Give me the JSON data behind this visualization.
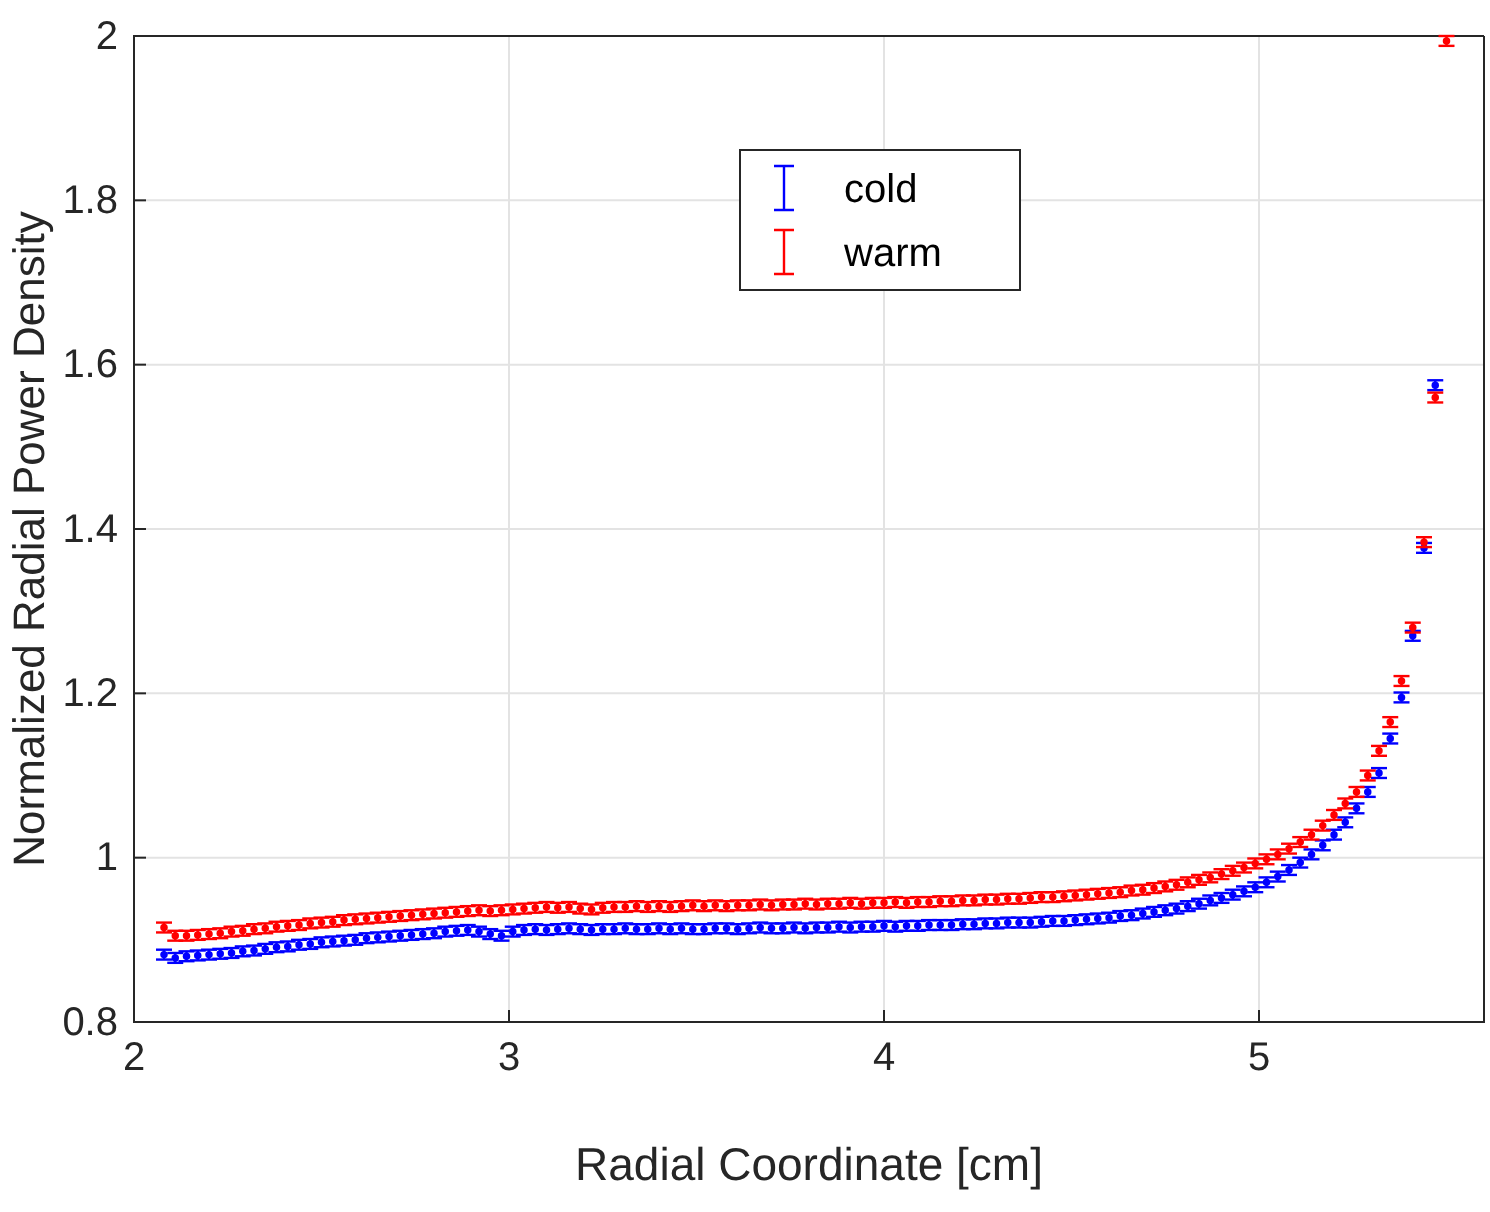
{
  "chart_data": {
    "type": "scatter",
    "xlabel": "Radial Coordinate [cm]",
    "ylabel": "Normalized Radial Power Density",
    "xlim": [
      2,
      5.6
    ],
    "xticks": [
      2,
      3,
      4,
      5
    ],
    "ylim": [
      0.8,
      2
    ],
    "yticks": [
      0.8,
      1,
      1.2,
      1.4,
      1.6,
      1.8,
      2
    ],
    "grid": true,
    "legend": "top",
    "marker": "circle",
    "series": [
      {
        "name": "cold",
        "color": "#0000ff",
        "x": [
          2.08,
          2.11,
          2.14,
          2.17,
          2.2,
          2.23,
          2.26,
          2.29,
          2.32,
          2.35,
          2.38,
          2.41,
          2.44,
          2.47,
          2.5,
          2.53,
          2.56,
          2.59,
          2.62,
          2.65,
          2.68,
          2.71,
          2.74,
          2.77,
          2.8,
          2.83,
          2.86,
          2.89,
          2.92,
          2.95,
          2.98,
          3.01,
          3.04,
          3.07,
          3.1,
          3.13,
          3.16,
          3.19,
          3.22,
          3.25,
          3.28,
          3.31,
          3.34,
          3.37,
          3.4,
          3.43,
          3.46,
          3.49,
          3.52,
          3.55,
          3.58,
          3.61,
          3.64,
          3.67,
          3.7,
          3.73,
          3.76,
          3.79,
          3.82,
          3.85,
          3.88,
          3.91,
          3.94,
          3.97,
          4,
          4.03,
          4.06,
          4.09,
          4.12,
          4.15,
          4.18,
          4.21,
          4.24,
          4.27,
          4.3,
          4.33,
          4.36,
          4.39,
          4.42,
          4.45,
          4.48,
          4.51,
          4.54,
          4.57,
          4.6,
          4.63,
          4.66,
          4.69,
          4.72,
          4.75,
          4.78,
          4.81,
          4.84,
          4.87,
          4.9,
          4.93,
          4.96,
          4.99,
          5.02,
          5.05,
          5.08,
          5.11,
          5.14,
          5.17,
          5.2,
          5.23,
          5.26,
          5.29,
          5.32,
          5.35,
          5.38,
          5.41,
          5.44,
          5.47
        ],
        "values": [
          0.882,
          0.878,
          0.88,
          0.881,
          0.882,
          0.883,
          0.884,
          0.886,
          0.887,
          0.889,
          0.891,
          0.892,
          0.894,
          0.895,
          0.897,
          0.898,
          0.899,
          0.9,
          0.902,
          0.903,
          0.904,
          0.905,
          0.906,
          0.907,
          0.908,
          0.91,
          0.911,
          0.912,
          0.91,
          0.907,
          0.905,
          0.91,
          0.912,
          0.913,
          0.912,
          0.913,
          0.914,
          0.913,
          0.912,
          0.913,
          0.913,
          0.914,
          0.913,
          0.913,
          0.914,
          0.913,
          0.914,
          0.913,
          0.913,
          0.914,
          0.914,
          0.913,
          0.914,
          0.915,
          0.914,
          0.914,
          0.915,
          0.914,
          0.915,
          0.915,
          0.916,
          0.915,
          0.916,
          0.916,
          0.917,
          0.916,
          0.917,
          0.917,
          0.918,
          0.918,
          0.918,
          0.919,
          0.919,
          0.92,
          0.92,
          0.921,
          0.921,
          0.921,
          0.922,
          0.923,
          0.923,
          0.924,
          0.925,
          0.926,
          0.927,
          0.929,
          0.93,
          0.932,
          0.934,
          0.936,
          0.938,
          0.941,
          0.944,
          0.948,
          0.951,
          0.955,
          0.959,
          0.964,
          0.97,
          0.977,
          0.985,
          0.994,
          1.004,
          1.015,
          1.028,
          1.043,
          1.06,
          1.08,
          1.103,
          1.145,
          1.195,
          1.27,
          1.377,
          1.575
        ],
        "errors": [
          0.006,
          0.006,
          0.006,
          0.006,
          0.006,
          0.006,
          0.006,
          0.006,
          0.006,
          0.006,
          0.006,
          0.006,
          0.006,
          0.006,
          0.006,
          0.006,
          0.006,
          0.006,
          0.006,
          0.006,
          0.006,
          0.006,
          0.006,
          0.006,
          0.006,
          0.006,
          0.006,
          0.006,
          0.006,
          0.006,
          0.006,
          0.006,
          0.006,
          0.006,
          0.006,
          0.006,
          0.006,
          0.006,
          0.006,
          0.006,
          0.006,
          0.006,
          0.006,
          0.006,
          0.006,
          0.006,
          0.006,
          0.006,
          0.006,
          0.006,
          0.006,
          0.006,
          0.006,
          0.006,
          0.006,
          0.006,
          0.006,
          0.006,
          0.006,
          0.006,
          0.006,
          0.006,
          0.006,
          0.006,
          0.006,
          0.006,
          0.006,
          0.006,
          0.006,
          0.006,
          0.006,
          0.006,
          0.006,
          0.006,
          0.006,
          0.006,
          0.006,
          0.006,
          0.006,
          0.006,
          0.006,
          0.006,
          0.006,
          0.006,
          0.006,
          0.006,
          0.006,
          0.006,
          0.006,
          0.006,
          0.006,
          0.006,
          0.006,
          0.006,
          0.006,
          0.006,
          0.006,
          0.006,
          0.006,
          0.006,
          0.006,
          0.006,
          0.006,
          0.006,
          0.006,
          0.006,
          0.006,
          0.006,
          0.006,
          0.006,
          0.006,
          0.006,
          0.006,
          0.006
        ]
      },
      {
        "name": "warm",
        "color": "#ff0000",
        "x": [
          2.08,
          2.11,
          2.14,
          2.17,
          2.2,
          2.23,
          2.26,
          2.29,
          2.32,
          2.35,
          2.38,
          2.41,
          2.44,
          2.47,
          2.5,
          2.53,
          2.56,
          2.59,
          2.62,
          2.65,
          2.68,
          2.71,
          2.74,
          2.77,
          2.8,
          2.83,
          2.86,
          2.89,
          2.92,
          2.95,
          2.98,
          3.01,
          3.04,
          3.07,
          3.1,
          3.13,
          3.16,
          3.19,
          3.22,
          3.25,
          3.28,
          3.31,
          3.34,
          3.37,
          3.4,
          3.43,
          3.46,
          3.49,
          3.52,
          3.55,
          3.58,
          3.61,
          3.64,
          3.67,
          3.7,
          3.73,
          3.76,
          3.79,
          3.82,
          3.85,
          3.88,
          3.91,
          3.94,
          3.97,
          4,
          4.03,
          4.06,
          4.09,
          4.12,
          4.15,
          4.18,
          4.21,
          4.24,
          4.27,
          4.3,
          4.33,
          4.36,
          4.39,
          4.42,
          4.45,
          4.48,
          4.51,
          4.54,
          4.57,
          4.6,
          4.63,
          4.66,
          4.69,
          4.72,
          4.75,
          4.78,
          4.81,
          4.84,
          4.87,
          4.9,
          4.93,
          4.96,
          4.99,
          5.02,
          5.05,
          5.08,
          5.11,
          5.14,
          5.17,
          5.2,
          5.23,
          5.26,
          5.29,
          5.32,
          5.35,
          5.38,
          5.41,
          5.44,
          5.47,
          5.5
        ],
        "values": [
          0.915,
          0.905,
          0.905,
          0.906,
          0.907,
          0.908,
          0.91,
          0.911,
          0.913,
          0.914,
          0.916,
          0.917,
          0.918,
          0.92,
          0.921,
          0.922,
          0.924,
          0.925,
          0.926,
          0.927,
          0.928,
          0.929,
          0.93,
          0.931,
          0.932,
          0.933,
          0.934,
          0.935,
          0.936,
          0.935,
          0.936,
          0.937,
          0.938,
          0.939,
          0.94,
          0.939,
          0.94,
          0.938,
          0.937,
          0.939,
          0.94,
          0.94,
          0.941,
          0.94,
          0.941,
          0.94,
          0.941,
          0.942,
          0.941,
          0.942,
          0.941,
          0.942,
          0.942,
          0.943,
          0.942,
          0.943,
          0.943,
          0.944,
          0.943,
          0.944,
          0.944,
          0.945,
          0.944,
          0.945,
          0.945,
          0.946,
          0.945,
          0.946,
          0.946,
          0.947,
          0.947,
          0.948,
          0.948,
          0.949,
          0.949,
          0.95,
          0.95,
          0.951,
          0.952,
          0.952,
          0.953,
          0.954,
          0.955,
          0.956,
          0.957,
          0.958,
          0.96,
          0.961,
          0.963,
          0.965,
          0.967,
          0.97,
          0.973,
          0.976,
          0.98,
          0.984,
          0.988,
          0.993,
          0.998,
          1.004,
          1.011,
          1.019,
          1.028,
          1.039,
          1.052,
          1.066,
          1.08,
          1.1,
          1.13,
          1.165,
          1.215,
          1.28,
          1.384,
          1.56,
          1.994
        ],
        "errors": [
          0.006,
          0.006,
          0.006,
          0.006,
          0.006,
          0.006,
          0.006,
          0.006,
          0.006,
          0.006,
          0.006,
          0.006,
          0.006,
          0.006,
          0.006,
          0.006,
          0.006,
          0.006,
          0.006,
          0.006,
          0.006,
          0.006,
          0.006,
          0.006,
          0.006,
          0.006,
          0.006,
          0.006,
          0.006,
          0.006,
          0.006,
          0.006,
          0.006,
          0.006,
          0.006,
          0.006,
          0.006,
          0.006,
          0.006,
          0.006,
          0.006,
          0.006,
          0.006,
          0.006,
          0.006,
          0.006,
          0.006,
          0.006,
          0.006,
          0.006,
          0.006,
          0.006,
          0.006,
          0.006,
          0.006,
          0.006,
          0.006,
          0.006,
          0.006,
          0.006,
          0.006,
          0.006,
          0.006,
          0.006,
          0.006,
          0.006,
          0.006,
          0.006,
          0.006,
          0.006,
          0.006,
          0.006,
          0.006,
          0.006,
          0.006,
          0.006,
          0.006,
          0.006,
          0.006,
          0.006,
          0.006,
          0.006,
          0.006,
          0.006,
          0.006,
          0.006,
          0.006,
          0.006,
          0.006,
          0.006,
          0.006,
          0.006,
          0.006,
          0.006,
          0.006,
          0.006,
          0.006,
          0.006,
          0.006,
          0.006,
          0.006,
          0.006,
          0.006,
          0.006,
          0.006,
          0.006,
          0.006,
          0.006,
          0.006,
          0.006,
          0.006,
          0.006,
          0.006,
          0.006,
          0.006
        ]
      }
    ]
  }
}
